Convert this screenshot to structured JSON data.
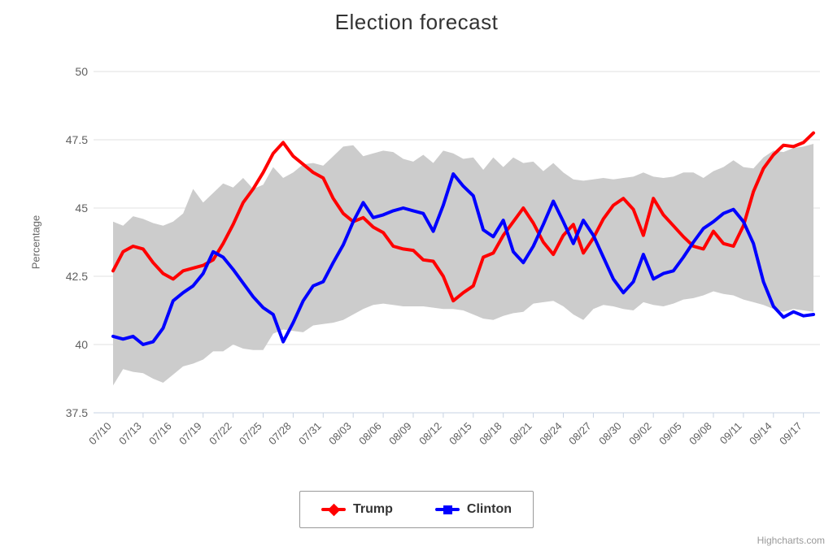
{
  "title": "Election forecast",
  "credits": "Highcharts.com",
  "colors": {
    "trump": "#ff0000",
    "clinton": "#0000ff",
    "band": "#cccccc",
    "grid": "#e0e0e0",
    "axis": "#c7d3e3",
    "text_dark": "#333333",
    "text_gray": "#606060"
  },
  "y_axis": {
    "title": "Percentage",
    "ticks": [
      37.5,
      40,
      42.5,
      45,
      47.5,
      50
    ]
  },
  "x_axis": {
    "tick_labels": [
      "07/10",
      "07/13",
      "07/16",
      "07/19",
      "07/22",
      "07/25",
      "07/28",
      "07/31",
      "08/03",
      "08/06",
      "08/09",
      "08/12",
      "08/15",
      "08/18",
      "08/21",
      "08/24",
      "08/27",
      "08/30",
      "09/02",
      "09/05",
      "09/08",
      "09/11",
      "09/14",
      "09/17"
    ]
  },
  "legend": {
    "items": [
      {
        "label": "Trump",
        "color": "#ff0000",
        "marker": "diamond"
      },
      {
        "label": "Clinton",
        "color": "#0000ff",
        "marker": "square"
      }
    ]
  },
  "chart_data": {
    "type": "line",
    "title": "Election forecast",
    "xlabel": "",
    "ylabel": "Percentage",
    "ylim": [
      37.5,
      50
    ],
    "grid": "horizontal",
    "legend_position": "bottom-center",
    "x": [
      "07/10",
      "07/11",
      "07/12",
      "07/13",
      "07/14",
      "07/15",
      "07/16",
      "07/17",
      "07/18",
      "07/19",
      "07/20",
      "07/21",
      "07/22",
      "07/23",
      "07/24",
      "07/25",
      "07/26",
      "07/27",
      "07/28",
      "07/29",
      "07/30",
      "07/31",
      "08/01",
      "08/02",
      "08/03",
      "08/04",
      "08/05",
      "08/06",
      "08/07",
      "08/08",
      "08/09",
      "08/10",
      "08/11",
      "08/12",
      "08/13",
      "08/14",
      "08/15",
      "08/16",
      "08/17",
      "08/18",
      "08/19",
      "08/20",
      "08/21",
      "08/22",
      "08/23",
      "08/24",
      "08/25",
      "08/26",
      "08/27",
      "08/28",
      "08/29",
      "08/30",
      "08/31",
      "09/01",
      "09/02",
      "09/03",
      "09/04",
      "09/05",
      "09/06",
      "09/07",
      "09/08",
      "09/09",
      "09/10",
      "09/11",
      "09/12",
      "09/13",
      "09/14",
      "09/15",
      "09/16",
      "09/17",
      "09/18"
    ],
    "series": [
      {
        "name": "Trump",
        "color": "#ff0000",
        "values": [
          42.7,
          43.4,
          43.6,
          43.5,
          43.0,
          42.6,
          42.4,
          42.7,
          42.8,
          42.9,
          43.1,
          43.7,
          44.4,
          45.2,
          45.7,
          46.3,
          47.0,
          47.4,
          46.9,
          46.6,
          46.3,
          46.1,
          45.35,
          44.8,
          44.5,
          44.65,
          44.3,
          44.1,
          43.6,
          43.5,
          43.45,
          43.1,
          43.05,
          42.5,
          41.6,
          41.9,
          42.15,
          43.2,
          43.35,
          44.0,
          44.5,
          45.0,
          44.45,
          43.75,
          43.3,
          44.0,
          44.4,
          43.35,
          43.9,
          44.6,
          45.1,
          45.35,
          44.95,
          44.0,
          45.35,
          44.75,
          44.35,
          43.95,
          43.6,
          43.5,
          44.15,
          43.7,
          43.6,
          44.35,
          45.6,
          46.45,
          46.95,
          47.3,
          47.25,
          47.4,
          47.75
        ]
      },
      {
        "name": "Clinton",
        "color": "#0000ff",
        "values": [
          40.3,
          40.2,
          40.3,
          40.0,
          40.1,
          40.6,
          41.6,
          41.9,
          42.15,
          42.6,
          43.4,
          43.2,
          42.75,
          42.25,
          41.75,
          41.35,
          41.1,
          40.1,
          40.8,
          41.6,
          42.15,
          42.3,
          43.0,
          43.65,
          44.5,
          45.2,
          44.65,
          44.75,
          44.9,
          45.0,
          44.9,
          44.8,
          44.15,
          45.1,
          46.25,
          45.8,
          45.45,
          44.2,
          43.95,
          44.55,
          43.4,
          43.0,
          43.6,
          44.4,
          45.25,
          44.5,
          43.7,
          44.55,
          44.0,
          43.2,
          42.4,
          41.9,
          42.3,
          43.3,
          42.4,
          42.6,
          42.7,
          43.2,
          43.75,
          44.25,
          44.5,
          44.8,
          44.95,
          44.5,
          43.7,
          42.3,
          41.4,
          41.0,
          41.2,
          41.05,
          41.1
        ]
      },
      {
        "name": "Forecast range",
        "type": "arearange",
        "color": "#cccccc",
        "high": [
          44.5,
          44.35,
          44.7,
          44.6,
          44.45,
          44.35,
          44.5,
          44.8,
          45.7,
          45.2,
          45.55,
          45.9,
          45.75,
          46.1,
          45.7,
          45.85,
          46.5,
          46.1,
          46.3,
          46.6,
          46.65,
          46.55,
          46.9,
          47.25,
          47.3,
          46.9,
          47.0,
          47.1,
          47.05,
          46.8,
          46.7,
          46.95,
          46.65,
          47.1,
          47.0,
          46.8,
          46.85,
          46.4,
          46.85,
          46.5,
          46.85,
          46.65,
          46.7,
          46.35,
          46.65,
          46.3,
          46.05,
          46.0,
          46.05,
          46.1,
          46.05,
          46.1,
          46.15,
          46.3,
          46.15,
          46.1,
          46.15,
          46.3,
          46.3,
          46.1,
          46.35,
          46.5,
          46.75,
          46.5,
          46.45,
          46.85,
          47.1,
          47.05,
          47.2,
          47.25,
          47.35
        ],
        "low": [
          38.5,
          39.1,
          39.0,
          38.95,
          38.75,
          38.6,
          38.9,
          39.2,
          39.3,
          39.45,
          39.75,
          39.75,
          40.0,
          39.85,
          39.8,
          39.8,
          40.4,
          40.55,
          40.5,
          40.45,
          40.7,
          40.75,
          40.8,
          40.9,
          41.1,
          41.3,
          41.45,
          41.5,
          41.45,
          41.4,
          41.4,
          41.4,
          41.35,
          41.3,
          41.3,
          41.25,
          41.1,
          40.95,
          40.9,
          41.05,
          41.15,
          41.2,
          41.5,
          41.55,
          41.6,
          41.4,
          41.1,
          40.9,
          41.3,
          41.45,
          41.4,
          41.3,
          41.25,
          41.55,
          41.45,
          41.4,
          41.5,
          41.65,
          41.7,
          41.8,
          41.95,
          41.85,
          41.8,
          41.65,
          41.55,
          41.45,
          41.3,
          41.2,
          41.3,
          41.25,
          41.2
        ]
      }
    ]
  }
}
